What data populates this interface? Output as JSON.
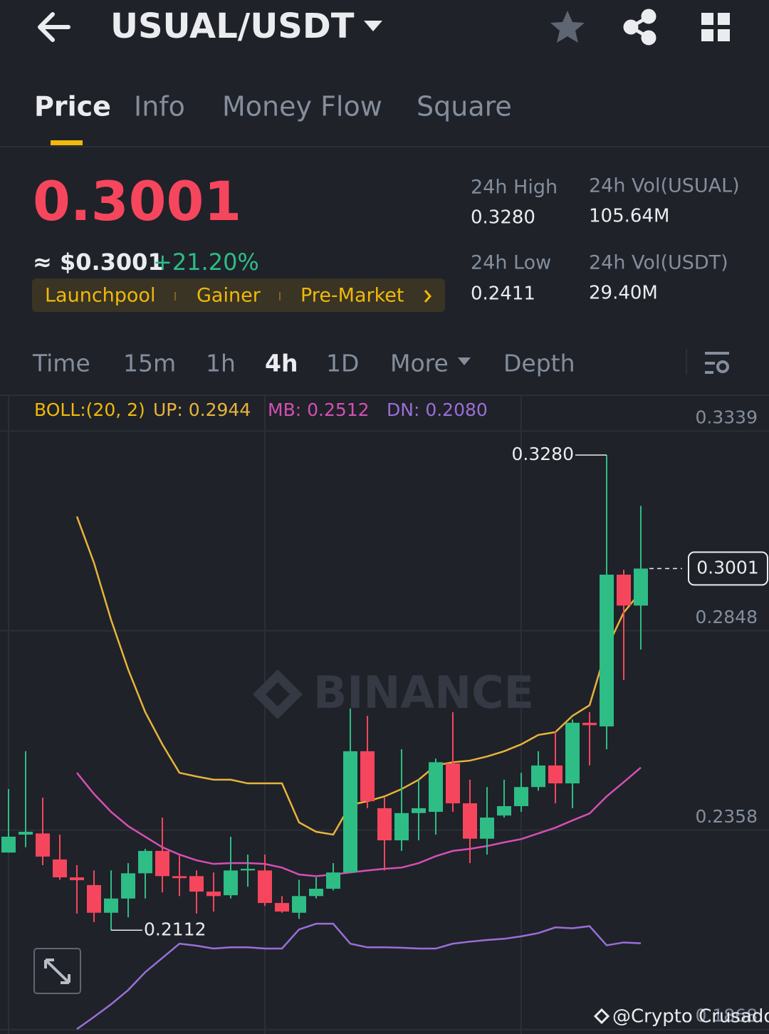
{
  "header": {
    "pair": "USUAL/USDT"
  },
  "tabs": [
    "Price",
    "Info",
    "Money Flow",
    "Square"
  ],
  "active_tab": 0,
  "ticker": {
    "price": "0.3001",
    "price_usd": "≈ $0.3001",
    "change": "+21.20%",
    "tags": [
      "Launchpool",
      "Gainer",
      "Pre-Market"
    ],
    "stats": [
      {
        "label": "24h High",
        "value": "0.3280"
      },
      {
        "label": "24h Vol(USUAL)",
        "value": "105.64M"
      },
      {
        "label": "24h Low",
        "value": "0.2411"
      },
      {
        "label": "24h Vol(USDT)",
        "value": "29.40M"
      }
    ]
  },
  "intervals": [
    "Time",
    "15m",
    "1h",
    "4h",
    "1D",
    "More",
    "Depth"
  ],
  "active_interval": 3,
  "chart_data": {
    "type": "candlestick",
    "indicator": "BOLL:(20, 2)",
    "up_color": "#2ebd85",
    "down_color": "#f6465d",
    "open": [
      0.2303,
      0.2347,
      0.235,
      0.2286,
      0.2242,
      0.2223,
      0.2155,
      0.219,
      0.2252,
      0.2307,
      0.2245,
      0.2245,
      0.2207,
      0.2198,
      0.2259,
      0.2259,
      0.2179,
      0.2155,
      0.2196,
      0.2214,
      0.2254,
      0.2552,
      0.2412,
      0.2333,
      0.24,
      0.2403,
      0.2522,
      0.2424,
      0.2337,
      0.2394,
      0.2417,
      0.2464,
      0.2517,
      0.2473,
      0.2622,
      0.2613,
      0.2986,
      0.291
    ],
    "high": [
      0.2459,
      0.2552,
      0.2438,
      0.2347,
      0.2272,
      0.2259,
      0.2259,
      0.2277,
      0.2312,
      0.2389,
      0.2298,
      0.2259,
      0.2254,
      0.2342,
      0.2298,
      0.2298,
      0.2196,
      0.2236,
      0.2242,
      0.2277,
      0.2657,
      0.2639,
      0.2438,
      0.2557,
      0.2482,
      0.2534,
      0.2648,
      0.2482,
      0.2464,
      0.2482,
      0.2499,
      0.2552,
      0.2601,
      0.263,
      0.2648,
      0.328,
      0.2998,
      0.3155
    ],
    "low": [
      0.2303,
      0.2316,
      0.2272,
      0.2236,
      0.2153,
      0.2132,
      0.2112,
      0.2144,
      0.219,
      0.2205,
      0.2196,
      0.2153,
      0.2158,
      0.219,
      0.2219,
      0.2172,
      0.2155,
      0.214,
      0.219,
      0.221,
      0.2254,
      0.2412,
      0.2259,
      0.2307,
      0.2333,
      0.2347,
      0.2403,
      0.2277,
      0.2298,
      0.2389,
      0.2403,
      0.2455,
      0.2424,
      0.2412,
      0.2517,
      0.2557,
      0.2727,
      0.2802
    ],
    "close": [
      0.2342,
      0.2354,
      0.2293,
      0.2242,
      0.2235,
      0.2155,
      0.219,
      0.2252,
      0.2307,
      0.2245,
      0.224,
      0.2207,
      0.2196,
      0.2259,
      0.2263,
      0.2179,
      0.2158,
      0.2196,
      0.2214,
      0.2254,
      0.2552,
      0.2429,
      0.2333,
      0.24,
      0.2412,
      0.2525,
      0.2424,
      0.2337,
      0.2389,
      0.2417,
      0.2464,
      0.2517,
      0.2473,
      0.2622,
      0.2616,
      0.2986,
      0.291,
      0.3001
    ],
    "series": [
      {
        "name": "UP: 0.2944",
        "color": "#e8b43a",
        "values": [
          null,
          null,
          null,
          null,
          0.3129,
          0.3015,
          0.2875,
          0.2753,
          0.2648,
          0.2569,
          0.2499,
          0.249,
          0.2482,
          0.2482,
          0.2473,
          0.2473,
          0.2473,
          0.2377,
          0.2354,
          0.2347,
          0.242,
          0.2429,
          0.2441,
          0.2459,
          0.2482,
          0.2517,
          0.2525,
          0.2529,
          0.2539,
          0.2552,
          0.2569,
          0.2592,
          0.2599,
          0.2639,
          0.2665,
          0.2805,
          0.2893,
          0.2944
        ]
      },
      {
        "name": "MB: 0.2512",
        "color": "#d64fb4",
        "values": [
          null,
          null,
          null,
          null,
          0.2499,
          0.2447,
          0.2403,
          0.2368,
          0.2342,
          0.2316,
          0.2298,
          0.2284,
          0.2275,
          0.2277,
          0.2277,
          0.2275,
          0.2266,
          0.2249,
          0.2245,
          0.2249,
          0.2254,
          0.2259,
          0.2263,
          0.2266,
          0.2277,
          0.2294,
          0.2307,
          0.2312,
          0.2319,
          0.2328,
          0.2336,
          0.235,
          0.2364,
          0.2382,
          0.2399,
          0.2441,
          0.2476,
          0.2512
        ]
      },
      {
        "name": "DN: 0.2080",
        "color": "#9a6fd8",
        "values": [
          null,
          null,
          null,
          null,
          0.1869,
          0.1899,
          0.193,
          0.1965,
          0.2009,
          0.2044,
          0.2079,
          0.2074,
          0.2067,
          0.207,
          0.207,
          0.2067,
          0.2067,
          0.2114,
          0.2128,
          0.2128,
          0.2079,
          0.207,
          0.207,
          0.2069,
          0.2067,
          0.2067,
          0.2079,
          0.2084,
          0.2088,
          0.2091,
          0.2097,
          0.2105,
          0.2119,
          0.2117,
          0.2122,
          0.2075,
          0.2082,
          0.208
        ]
      }
    ],
    "ylim": [
      0.1857,
      0.3427
    ],
    "yticks": [
      0.3339,
      0.2848,
      0.2358,
      0.1868
    ],
    "grid": true,
    "high_marker": {
      "value": 0.328,
      "label": "0.3280"
    },
    "low_marker": {
      "value": 0.2112,
      "label": "0.2112"
    },
    "last_price": {
      "value": 0.3001,
      "label": "0.3001"
    }
  },
  "logo": "BINANCE",
  "watermark": "@Crypto Crusador"
}
